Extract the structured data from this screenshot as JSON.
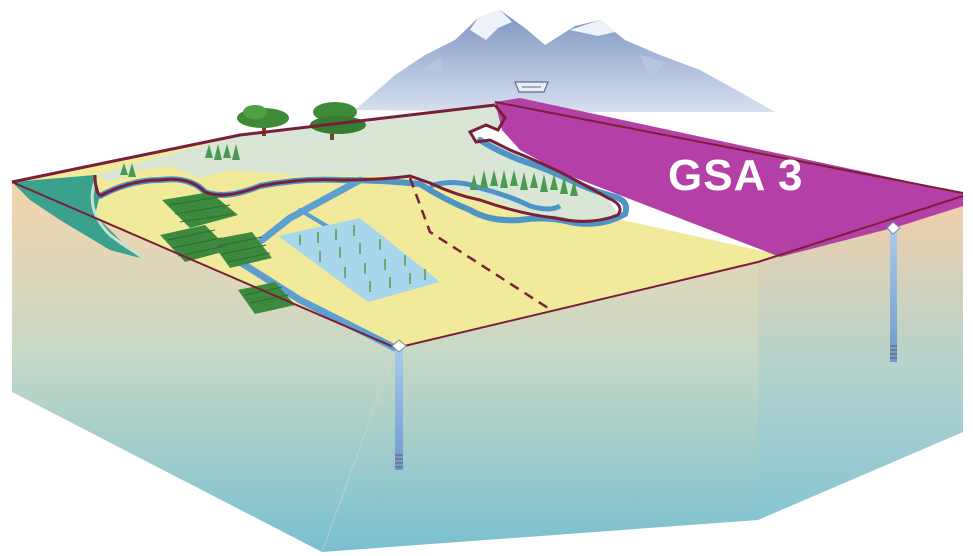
{
  "diagram": {
    "zone_label": "GSA 3",
    "colors": {
      "gsa_zone": "#b43fa6",
      "valley_floor": "#f1ea9a",
      "stream": "#4f94c6",
      "boundary": "#7a1f3a",
      "wetland": "#3aa18c",
      "mountains": "#9fb4d6",
      "block_side_top": "#f3d7ae",
      "block_side_bottom": "#7fc2cf"
    },
    "icons": [
      "mountain-range",
      "dam",
      "oak-trees",
      "orchard",
      "rice-field",
      "wells"
    ]
  }
}
